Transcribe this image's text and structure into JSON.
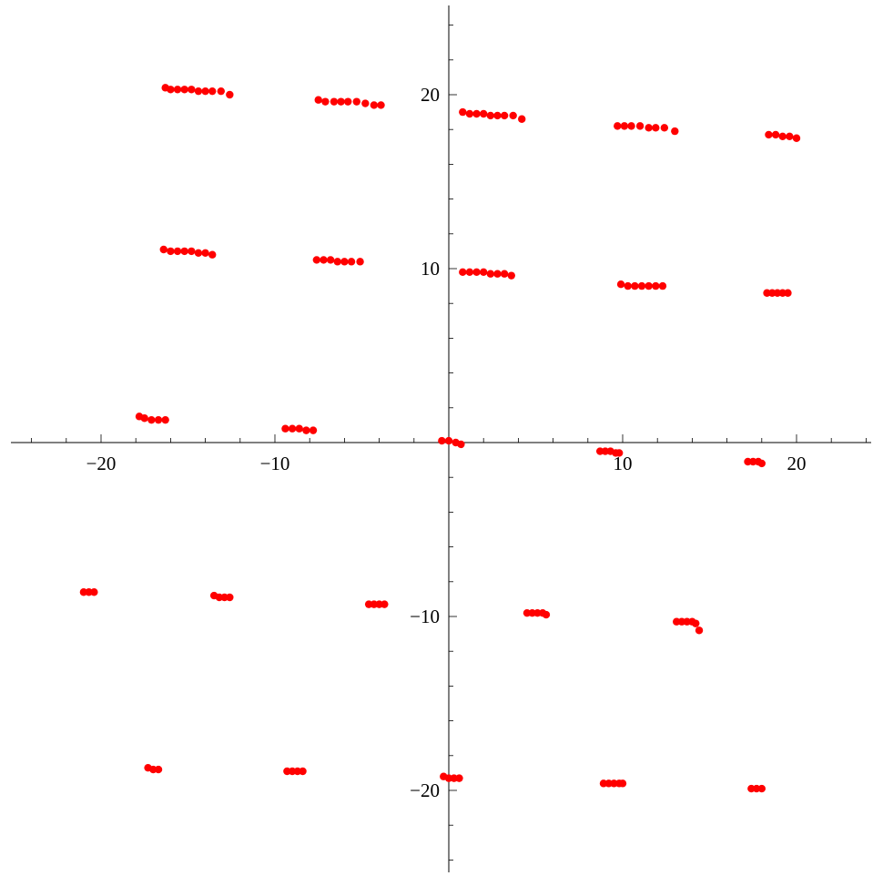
{
  "chart_data": {
    "type": "scatter",
    "title": "",
    "xlabel": "",
    "ylabel": "",
    "xlim": [
      -24.5,
      24.5
    ],
    "ylim": [
      -24.5,
      25
    ],
    "grid": false,
    "x_ticks": [
      {
        "value": -20,
        "label": "−20"
      },
      {
        "value": -10,
        "label": "−10"
      },
      {
        "value": 10,
        "label": "10"
      },
      {
        "value": 20,
        "label": "20"
      }
    ],
    "y_ticks": [
      {
        "value": 20,
        "label": "20"
      },
      {
        "value": 10,
        "label": "10"
      },
      {
        "value": -10,
        "label": "−10"
      },
      {
        "value": -20,
        "label": "−20"
      }
    ],
    "point_color": "#ff0000",
    "series": [
      {
        "points": [
          [
            -16.3,
            20.4
          ],
          [
            -16.0,
            20.3
          ],
          [
            -15.6,
            20.3
          ],
          [
            -15.2,
            20.3
          ],
          [
            -14.8,
            20.3
          ],
          [
            -14.4,
            20.2
          ],
          [
            -14.0,
            20.2
          ],
          [
            -13.6,
            20.2
          ],
          [
            -13.1,
            20.2
          ],
          [
            -12.6,
            20.0
          ],
          [
            -7.5,
            19.7
          ],
          [
            -7.1,
            19.6
          ],
          [
            -6.6,
            19.6
          ],
          [
            -6.2,
            19.6
          ],
          [
            -5.8,
            19.6
          ],
          [
            -5.3,
            19.6
          ],
          [
            -4.8,
            19.5
          ],
          [
            -4.3,
            19.4
          ],
          [
            -3.9,
            19.4
          ],
          [
            0.8,
            19.0
          ],
          [
            1.2,
            18.9
          ],
          [
            1.6,
            18.9
          ],
          [
            2.0,
            18.9
          ],
          [
            2.4,
            18.8
          ],
          [
            2.8,
            18.8
          ],
          [
            3.2,
            18.8
          ],
          [
            3.7,
            18.8
          ],
          [
            4.2,
            18.6
          ],
          [
            9.7,
            18.2
          ],
          [
            10.1,
            18.2
          ],
          [
            10.5,
            18.2
          ],
          [
            11.0,
            18.2
          ],
          [
            11.5,
            18.1
          ],
          [
            11.9,
            18.1
          ],
          [
            12.4,
            18.1
          ],
          [
            13.0,
            17.9
          ],
          [
            18.4,
            17.7
          ],
          [
            18.8,
            17.7
          ],
          [
            19.2,
            17.6
          ],
          [
            19.6,
            17.6
          ],
          [
            20.0,
            17.5
          ],
          [
            -16.4,
            11.1
          ],
          [
            -16.0,
            11.0
          ],
          [
            -15.6,
            11.0
          ],
          [
            -15.2,
            11.0
          ],
          [
            -14.8,
            11.0
          ],
          [
            -14.4,
            10.9
          ],
          [
            -14.0,
            10.9
          ],
          [
            -13.6,
            10.8
          ],
          [
            -7.6,
            10.5
          ],
          [
            -7.2,
            10.5
          ],
          [
            -6.8,
            10.5
          ],
          [
            -6.4,
            10.4
          ],
          [
            -6.0,
            10.4
          ],
          [
            -5.6,
            10.4
          ],
          [
            -5.1,
            10.4
          ],
          [
            0.8,
            9.8
          ],
          [
            1.2,
            9.8
          ],
          [
            1.6,
            9.8
          ],
          [
            2.0,
            9.8
          ],
          [
            2.4,
            9.7
          ],
          [
            2.8,
            9.7
          ],
          [
            3.2,
            9.7
          ],
          [
            3.6,
            9.6
          ],
          [
            9.9,
            9.1
          ],
          [
            10.3,
            9.0
          ],
          [
            10.7,
            9.0
          ],
          [
            11.1,
            9.0
          ],
          [
            11.5,
            9.0
          ],
          [
            11.9,
            9.0
          ],
          [
            12.3,
            9.0
          ],
          [
            18.3,
            8.6
          ],
          [
            18.6,
            8.6
          ],
          [
            18.9,
            8.6
          ],
          [
            19.2,
            8.6
          ],
          [
            19.5,
            8.6
          ],
          [
            -17.8,
            1.5
          ],
          [
            -17.5,
            1.4
          ],
          [
            -17.1,
            1.3
          ],
          [
            -16.7,
            1.3
          ],
          [
            -16.3,
            1.3
          ],
          [
            -9.4,
            0.8
          ],
          [
            -9.0,
            0.8
          ],
          [
            -8.6,
            0.8
          ],
          [
            -8.2,
            0.7
          ],
          [
            -7.8,
            0.7
          ],
          [
            -0.4,
            0.1
          ],
          [
            0.0,
            0.1
          ],
          [
            0.4,
            0.0
          ],
          [
            0.7,
            -0.1
          ],
          [
            8.7,
            -0.5
          ],
          [
            9.0,
            -0.5
          ],
          [
            9.3,
            -0.5
          ],
          [
            9.6,
            -0.6
          ],
          [
            9.8,
            -0.6
          ],
          [
            17.2,
            -1.1
          ],
          [
            17.5,
            -1.1
          ],
          [
            17.8,
            -1.1
          ],
          [
            18.0,
            -1.2
          ],
          [
            -21.0,
            -8.6
          ],
          [
            -20.7,
            -8.6
          ],
          [
            -20.4,
            -8.6
          ],
          [
            -13.5,
            -8.8
          ],
          [
            -13.2,
            -8.9
          ],
          [
            -12.9,
            -8.9
          ],
          [
            -12.6,
            -8.9
          ],
          [
            -4.6,
            -9.3
          ],
          [
            -4.3,
            -9.3
          ],
          [
            -4.0,
            -9.3
          ],
          [
            -3.7,
            -9.3
          ],
          [
            4.5,
            -9.8
          ],
          [
            4.8,
            -9.8
          ],
          [
            5.1,
            -9.8
          ],
          [
            5.4,
            -9.8
          ],
          [
            5.6,
            -9.9
          ],
          [
            13.1,
            -10.3
          ],
          [
            13.4,
            -10.3
          ],
          [
            13.7,
            -10.3
          ],
          [
            14.0,
            -10.3
          ],
          [
            14.2,
            -10.4
          ],
          [
            14.4,
            -10.8
          ],
          [
            -17.3,
            -18.7
          ],
          [
            -17.0,
            -18.8
          ],
          [
            -16.7,
            -18.8
          ],
          [
            -9.3,
            -18.9
          ],
          [
            -9.0,
            -18.9
          ],
          [
            -8.7,
            -18.9
          ],
          [
            -8.4,
            -18.9
          ],
          [
            -0.3,
            -19.2
          ],
          [
            0.0,
            -19.3
          ],
          [
            0.3,
            -19.3
          ],
          [
            0.6,
            -19.3
          ],
          [
            8.9,
            -19.6
          ],
          [
            9.2,
            -19.6
          ],
          [
            9.5,
            -19.6
          ],
          [
            9.8,
            -19.6
          ],
          [
            10.0,
            -19.6
          ],
          [
            17.4,
            -19.9
          ],
          [
            17.7,
            -19.9
          ],
          [
            18.0,
            -19.9
          ]
        ]
      }
    ]
  }
}
